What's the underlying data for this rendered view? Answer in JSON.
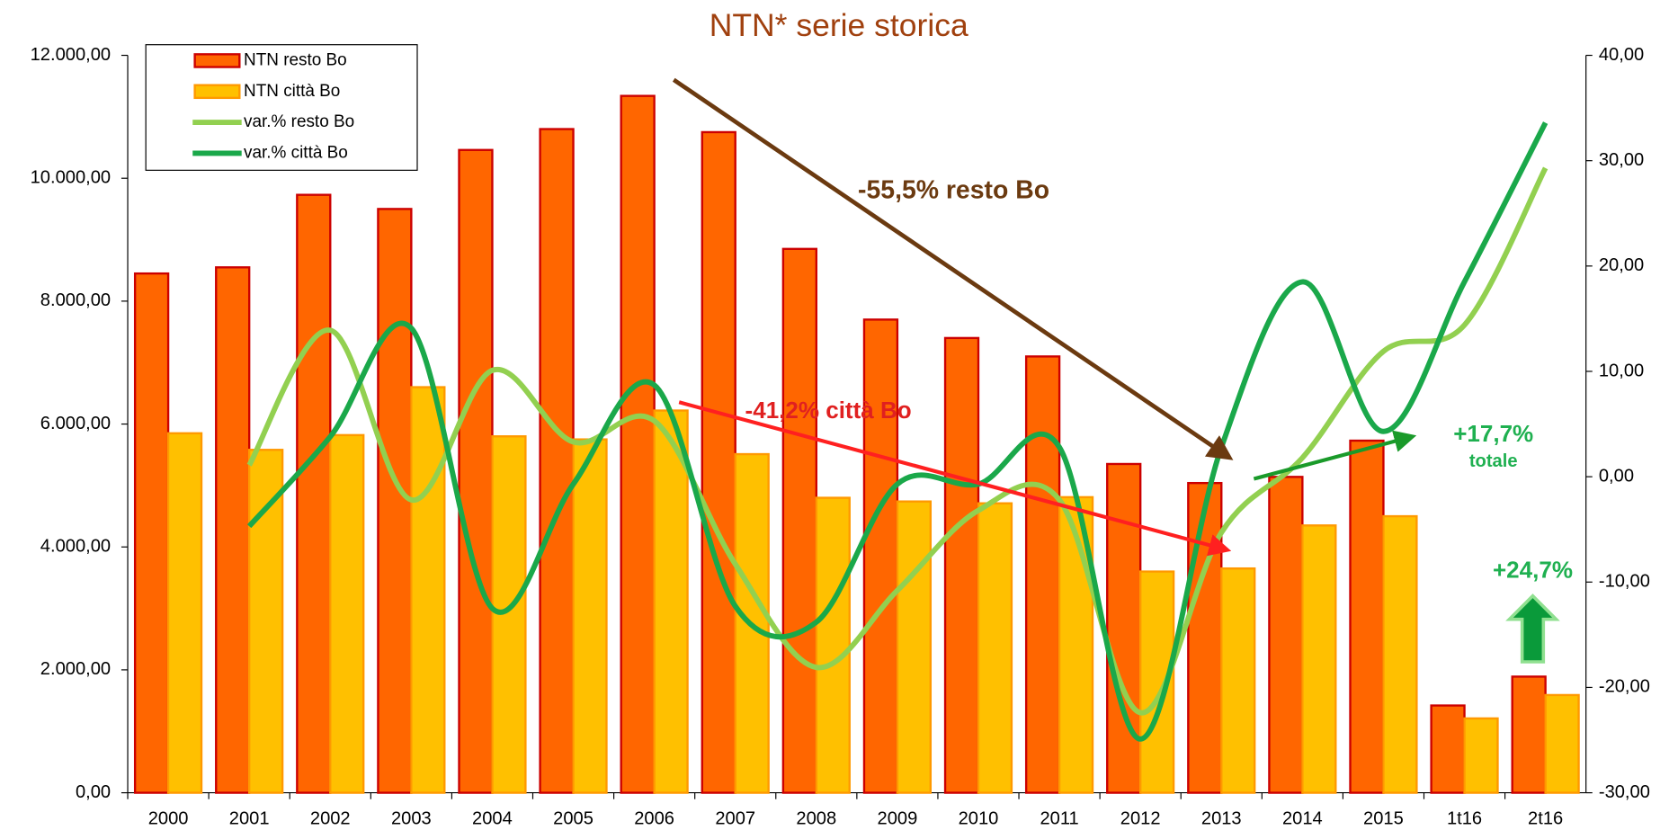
{
  "chart_data": {
    "type": "bar",
    "title": "NTN* serie storica",
    "categories": [
      "2000",
      "2001",
      "2002",
      "2003",
      "2004",
      "2005",
      "2006",
      "2007",
      "2008",
      "2009",
      "2010",
      "2011",
      "2012",
      "2013",
      "2014",
      "2015",
      "1t16",
      "2t16"
    ],
    "series": [
      {
        "name": "NTN resto Bo",
        "type": "bar",
        "color": "#ff6600",
        "values": [
          8450,
          8550,
          9730,
          9500,
          10460,
          10800,
          11340,
          10750,
          8850,
          7700,
          7400,
          7100,
          5350,
          5040,
          5140,
          5730,
          1420,
          1890
        ]
      },
      {
        "name": "NTN città Bo",
        "type": "bar",
        "color": "#ffc000",
        "values": [
          5850,
          5580,
          5820,
          6600,
          5800,
          5750,
          6220,
          5510,
          4800,
          4740,
          4710,
          4810,
          3600,
          3650,
          4350,
          4500,
          1210,
          1590
        ]
      },
      {
        "name": "var.% resto Bo",
        "type": "line",
        "axis": "y2",
        "color": "#92d050",
        "values": [
          null,
          1.1,
          13.9,
          -2.2,
          10.1,
          3.3,
          5.3,
          -8.3,
          -18.1,
          -10.8,
          -3.2,
          -2.2,
          -22.4,
          -5.3,
          1.8,
          11.9,
          14.4,
          29.3
        ]
      },
      {
        "name": "var.% città Bo",
        "type": "line",
        "axis": "y2",
        "color": "#1aa84a",
        "values": [
          null,
          -4.7,
          3.8,
          14.1,
          -12.5,
          -0.7,
          8.7,
          -12.3,
          -13.8,
          -0.7,
          -0.7,
          2.8,
          -24.9,
          2.8,
          18.5,
          4.3,
          18.5,
          33.6
        ]
      }
    ],
    "ylim": [
      0,
      12000
    ],
    "yticks": [
      {
        "value": 0,
        "label": "0,00"
      },
      {
        "value": 2000,
        "label": "2.000,00"
      },
      {
        "value": 4000,
        "label": "4.000,00"
      },
      {
        "value": 6000,
        "label": "6.000,00"
      },
      {
        "value": 8000,
        "label": "8.000,00"
      },
      {
        "value": 10000,
        "label": "10.000,00"
      },
      {
        "value": 12000,
        "label": "12.000,00"
      }
    ],
    "y2lim": [
      -30,
      40
    ],
    "y2ticks": [
      {
        "value": -30,
        "label": "-30,00"
      },
      {
        "value": -20,
        "label": "-20,00"
      },
      {
        "value": -10,
        "label": "-10,00"
      },
      {
        "value": 0,
        "label": "0,00"
      },
      {
        "value": 10,
        "label": "10,00"
      },
      {
        "value": 20,
        "label": "20,00"
      },
      {
        "value": 30,
        "label": "30,00"
      },
      {
        "value": 40,
        "label": "40,00"
      }
    ],
    "legend": "upper left",
    "annotations": [
      "-55,5% resto Bo",
      "-41,2% città Bo",
      "+17,7%",
      "totale",
      "+24,7%"
    ]
  }
}
